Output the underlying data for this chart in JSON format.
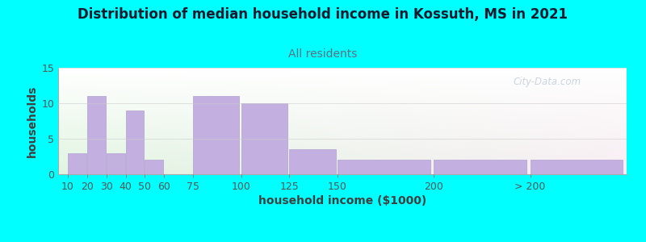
{
  "title": "Distribution of median household income in Kossuth, MS in 2021",
  "subtitle": "All residents",
  "xlabel": "household income ($1000)",
  "ylabel": "households",
  "background_color": "#00FFFF",
  "bar_color": "#C4B0E0",
  "bar_edge_color": "#B0A0D0",
  "bar_positions": [
    10,
    20,
    30,
    40,
    50,
    75,
    100,
    125,
    150,
    200,
    250
  ],
  "bar_values": [
    3,
    11,
    3,
    9,
    2,
    11,
    10,
    3.5,
    2,
    2,
    2
  ],
  "bar_widths": [
    10,
    10,
    10,
    10,
    10,
    25,
    25,
    25,
    50,
    50,
    50
  ],
  "xtick_positions": [
    10,
    20,
    30,
    40,
    50,
    60,
    75,
    100,
    125,
    150,
    200,
    250
  ],
  "xtick_labels": [
    "10",
    "20",
    "30",
    "40",
    "50",
    "60",
    "75",
    "100",
    "125",
    "150",
    "200",
    "> 200"
  ],
  "ylim": [
    0,
    15
  ],
  "yticks": [
    0,
    5,
    10,
    15
  ],
  "title_fontsize": 12,
  "subtitle_fontsize": 10,
  "axis_label_fontsize": 10,
  "tick_fontsize": 9,
  "watermark": "City-Data.com",
  "title_color": "#1a1a2e",
  "subtitle_color": "#708090",
  "axis_label_color": "#404040"
}
